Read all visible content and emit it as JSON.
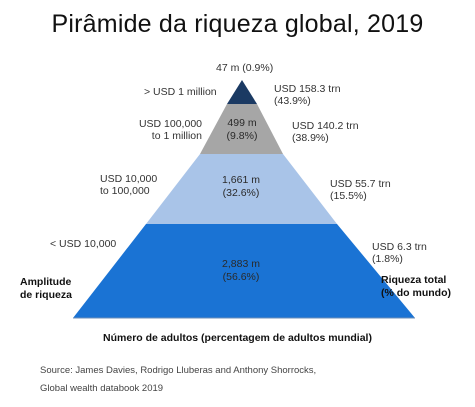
{
  "title": "Pirâmide da riqueza global, 2019",
  "top_label": "47 m (0.9%)",
  "tiers": [
    {
      "left_label": "> USD 1 million",
      "center": "",
      "right_line1": "USD 158.3 trn",
      "right_line2": "(43.9%)",
      "color": "#1b3a63"
    },
    {
      "left_line1": "USD 100,000",
      "left_line2": "to 1 million",
      "center_line1": "499 m",
      "center_line2": "(9.8%)",
      "right_line1": "USD 140.2 trn",
      "right_line2": "(38.9%)",
      "color": "#a6a6a6"
    },
    {
      "left_line1": "USD 10,000",
      "left_line2": "to 100,000",
      "center_line1": "1,661 m",
      "center_line2": "(32.6%)",
      "right_line1": "USD 55.7 trn",
      "right_line2": "(15.5%)",
      "color": "#a9c4e8"
    },
    {
      "left_label": "< USD 10,000",
      "center_line1": "2,883 m",
      "center_line2": "(56.6%)",
      "right_line1": "USD 6.3 trn",
      "right_line2": "(1.8%)",
      "color": "#1a73d4"
    }
  ],
  "side_left_line1": "Amplitude",
  "side_left_line2": "de riqueza",
  "side_right_line1": "Riqueza total",
  "side_right_line2": "(% do mundo)",
  "x_axis_label": "Número de adultos (percentagem de adultos mundial)",
  "source_line1": "Source: James Davies, Rodrigo Lluberas and Anthony Shorrocks,",
  "source_line2": "Global wealth databook 2019"
}
